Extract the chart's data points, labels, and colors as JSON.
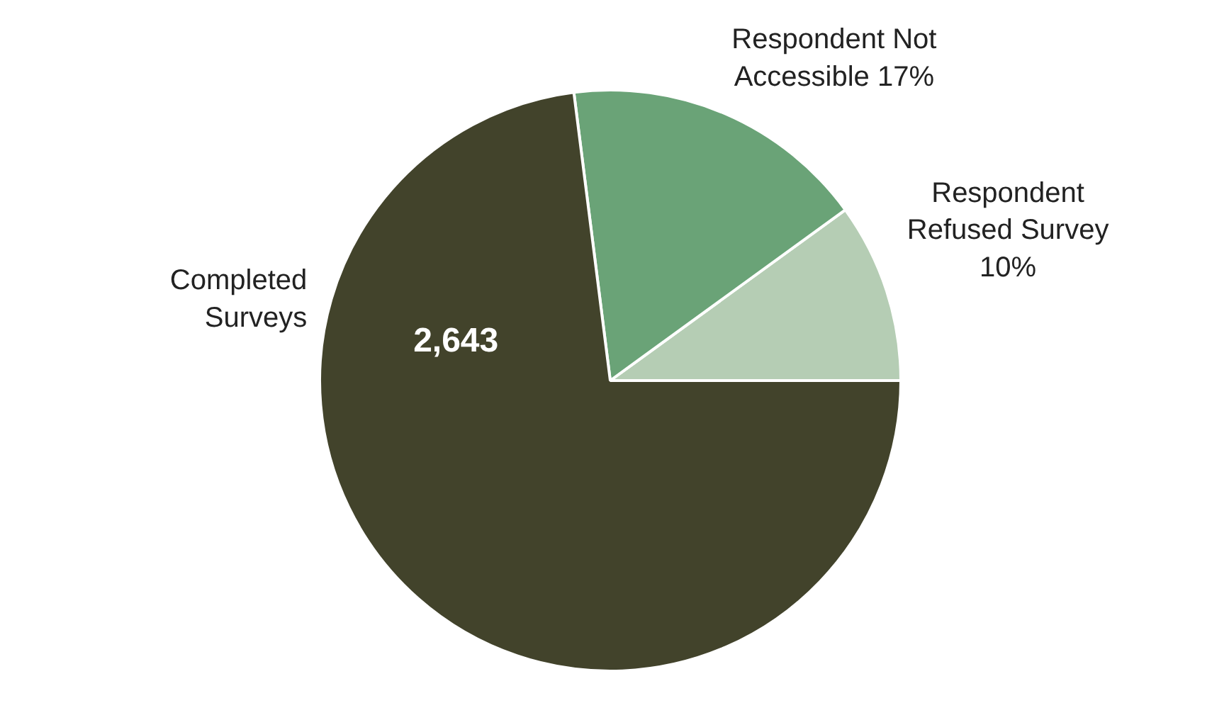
{
  "chart_data": {
    "type": "pie",
    "categories": [
      "Completed Surveys",
      "Respondent Not Accessible",
      "Respondent Refused Survey"
    ],
    "values": [
      73,
      17,
      10
    ],
    "value_labels": [
      null,
      "17%",
      "10%"
    ],
    "annotations": [
      "2,643"
    ],
    "colors": [
      "#42432b",
      "#6aa377",
      "#b5cdb4"
    ],
    "legend": false
  }
}
